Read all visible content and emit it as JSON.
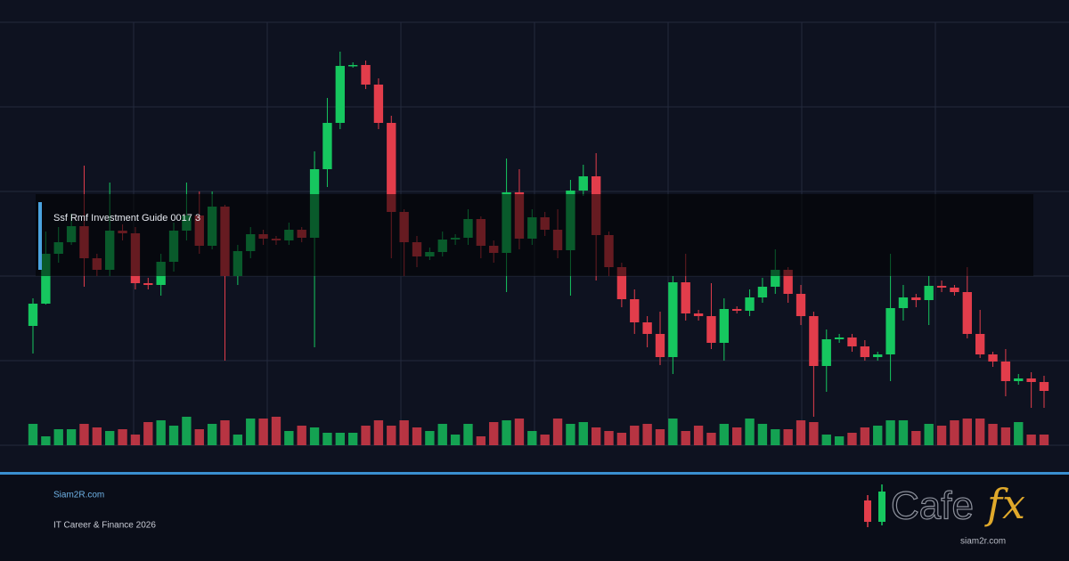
{
  "chart_data": {
    "type": "candlestick",
    "title": "Ssf Rmf Investment Guide 0017 3",
    "open": [
      134,
      159,
      215,
      228,
      246,
      210,
      197,
      241,
      238,
      182,
      180,
      206,
      241,
      258,
      224,
      268,
      190,
      218,
      237,
      232,
      230,
      242,
      233,
      310,
      362,
      426,
      427,
      405,
      362,
      262,
      228,
      212,
      217,
      231,
      233,
      254,
      224,
      216,
      284,
      232,
      256,
      242,
      219,
      286,
      302,
      236,
      200,
      164,
      138,
      125,
      99,
      183,
      148,
      145,
      115,
      153,
      151,
      166,
      178,
      197,
      170,
      145,
      89,
      119,
      121,
      111,
      99,
      102,
      154,
      166,
      163,
      179,
      177,
      172,
      125,
      102,
      94,
      72,
      75,
      71
    ],
    "high": [
      165,
      240,
      245,
      260,
      314,
      215,
      295,
      248,
      245,
      188,
      215,
      250,
      295,
      285,
      285,
      270,
      225,
      245,
      242,
      235,
      250,
      245,
      330,
      390,
      442,
      430,
      432,
      412,
      370,
      265,
      235,
      222,
      240,
      237,
      265,
      257,
      230,
      322,
      310,
      265,
      262,
      265,
      298,
      315,
      328,
      240,
      205,
      175,
      145,
      150,
      190,
      215,
      152,
      182,
      165,
      156,
      175,
      188,
      220,
      200,
      180,
      150,
      130,
      125,
      125,
      118,
      105,
      215,
      180,
      170,
      190,
      185,
      180,
      200,
      152,
      105,
      108,
      80,
      82,
      78
    ],
    "low": [
      103,
      158,
      205,
      225,
      178,
      190,
      190,
      230,
      175,
      175,
      168,
      195,
      230,
      215,
      220,
      95,
      180,
      210,
      225,
      225,
      225,
      228,
      110,
      290,
      355,
      424,
      400,
      355,
      210,
      190,
      200,
      208,
      212,
      225,
      225,
      210,
      205,
      172,
      220,
      225,
      235,
      210,
      168,
      280,
      185,
      190,
      155,
      125,
      110,
      90,
      80,
      140,
      140,
      108,
      95,
      148,
      145,
      160,
      170,
      160,
      135,
      32,
      60,
      115,
      105,
      95,
      95,
      72,
      140,
      155,
      135,
      172,
      168,
      120,
      98,
      88,
      55,
      68,
      42,
      42
    ],
    "close": [
      159,
      215,
      228,
      246,
      210,
      197,
      241,
      238,
      182,
      180,
      206,
      241,
      258,
      224,
      268,
      190,
      218,
      237,
      232,
      230,
      242,
      233,
      310,
      362,
      426,
      427,
      405,
      362,
      262,
      228,
      212,
      217,
      231,
      233,
      254,
      224,
      216,
      284,
      232,
      256,
      242,
      219,
      286,
      302,
      236,
      200,
      164,
      138,
      125,
      99,
      183,
      148,
      145,
      115,
      153,
      151,
      166,
      178,
      197,
      170,
      145,
      89,
      119,
      121,
      111,
      99,
      102,
      154,
      166,
      163,
      179,
      177,
      172,
      125,
      102,
      94,
      72,
      75,
      71,
      61
    ],
    "volume": [
      24,
      10,
      18,
      18,
      24,
      20,
      16,
      18,
      12,
      26,
      28,
      22,
      32,
      18,
      24,
      28,
      12,
      30,
      30,
      32,
      16,
      22,
      20,
      14,
      14,
      14,
      22,
      28,
      22,
      28,
      20,
      16,
      24,
      12,
      24,
      10,
      26,
      28,
      30,
      16,
      12,
      30,
      24,
      26,
      20,
      16,
      14,
      22,
      24,
      18,
      30,
      16,
      22,
      14,
      24,
      20,
      30,
      24,
      18,
      18,
      28,
      26,
      12,
      10,
      14,
      20,
      22,
      28,
      28,
      16,
      24,
      22,
      28,
      30,
      30,
      24,
      20,
      26,
      12,
      12
    ],
    "up_color": "#16c75f",
    "down_color": "#e23d4b",
    "ylim": [
      0,
      475
    ],
    "yticks": [
      0,
      95,
      190,
      285,
      380,
      475
    ],
    "volume_lim": [
      0,
      40
    ],
    "grid": true
  },
  "footer": {
    "site": "Siam2R.com",
    "tagline": "IT Career & Finance 2026"
  },
  "logo": {
    "word": "Cafe",
    "accent": "fx",
    "url": "siam2r.com"
  }
}
